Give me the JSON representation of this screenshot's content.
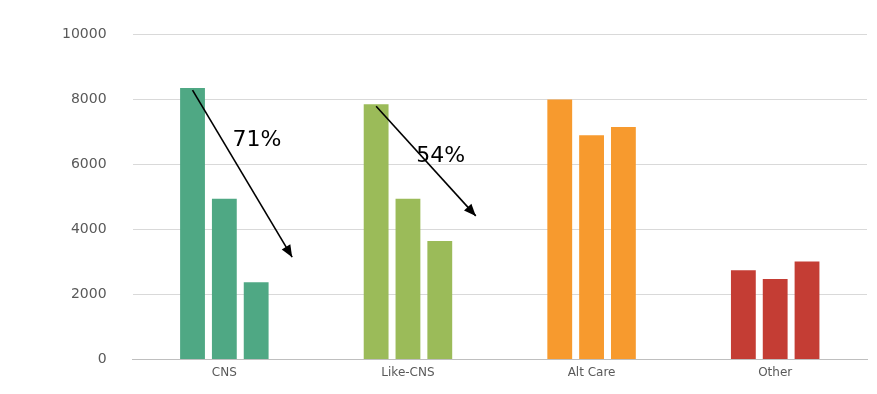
{
  "chart_data": {
    "type": "bar",
    "categories": [
      "CNS",
      "Like-CNS",
      "Alt Care",
      "Other"
    ],
    "series": [
      {
        "values": [
          8350,
          7850,
          8000,
          2750
        ],
        "colors": [
          "#4fa884",
          "#9bbb59",
          "#f79a2e",
          "#c43d34"
        ]
      },
      {
        "values": [
          4950,
          4950,
          6900,
          2480
        ],
        "colors": [
          "#4fa884",
          "#9bbb59",
          "#f79a2e",
          "#c43d34"
        ]
      },
      {
        "values": [
          2380,
          3650,
          7150,
          3020
        ],
        "colors": [
          "#4fa884",
          "#9bbb59",
          "#f79a2e",
          "#c43d34"
        ]
      }
    ],
    "ylim": [
      0,
      10000
    ],
    "yticks": [
      0,
      2000,
      4000,
      6000,
      8000,
      10000
    ],
    "grid": true,
    "annotations": [
      {
        "text": "71%",
        "category": "CNS"
      },
      {
        "text": "54%",
        "category": "Like-CNS"
      }
    ]
  }
}
